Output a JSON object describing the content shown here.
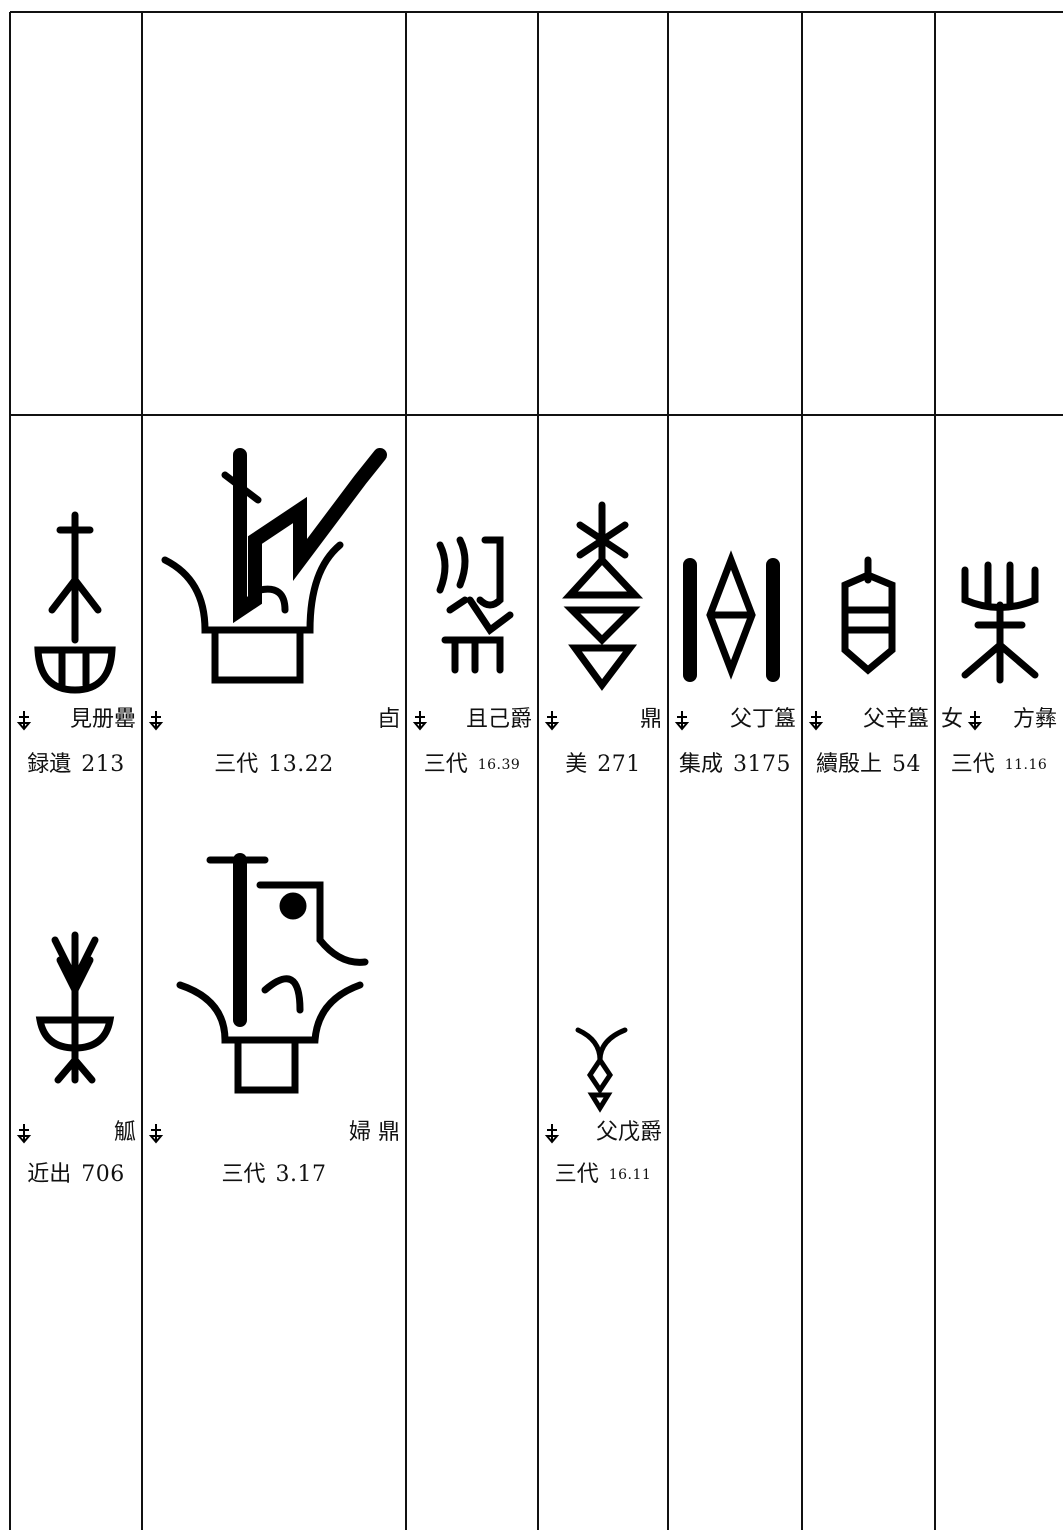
{
  "columns": [
    {
      "entries": [
        {
          "name": "見册罍",
          "book": "録遺",
          "number": "213"
        },
        {
          "name": "觚",
          "book": "近出",
          "number": "706"
        }
      ]
    },
    {
      "entries": [
        {
          "name": "卣",
          "book": "三代",
          "number": "13.22"
        },
        {
          "name": "婦 鼎",
          "book": "三代",
          "number": "3.17"
        }
      ]
    },
    {
      "entries": [
        {
          "name": "且己爵",
          "book": "三代",
          "number": "16.39"
        }
      ]
    },
    {
      "entries": [
        {
          "name": "鼎",
          "book": "美",
          "number": "271"
        },
        {
          "name": "父戊爵",
          "book": "三代",
          "number": "16.11"
        }
      ]
    },
    {
      "entries": [
        {
          "name": "父丁簋",
          "book": "集成",
          "number": "3175"
        }
      ]
    },
    {
      "entries": [
        {
          "name": "父辛簋",
          "book": "續殷上",
          "number": "54"
        }
      ]
    },
    {
      "entries": [
        {
          "prefix": "女",
          "name": "方彝",
          "book": "三代",
          "number": "11.16"
        }
      ]
    }
  ]
}
